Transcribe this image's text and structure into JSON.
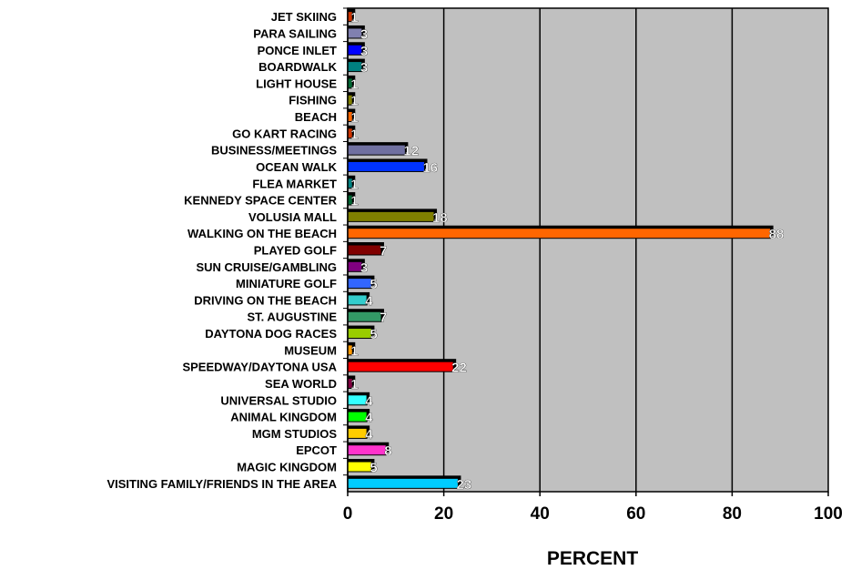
{
  "chart_data": {
    "type": "bar",
    "orientation": "horizontal",
    "xlabel": "PERCENT",
    "xlim": [
      0,
      100
    ],
    "x_ticks": [
      "0",
      "20",
      "40",
      "60",
      "80",
      "100"
    ],
    "grid": "vertical",
    "plot_background": "#c0c0c0",
    "categories": [
      "JET SKIING",
      "PARA SAILING",
      "PONCE INLET",
      "BOARDWALK",
      "LIGHT HOUSE",
      "FISHING",
      "BEACH",
      "GO KART RACING",
      "BUSINESS/MEETINGS",
      "OCEAN WALK",
      "FLEA MARKET",
      "KENNEDY SPACE CENTER",
      "VOLUSIA MALL",
      "WALKING ON THE BEACH",
      "PLAYED GOLF",
      "SUN CRUISE/GAMBLING",
      "MINIATURE GOLF",
      "DRIVING ON THE BEACH",
      "ST. AUGUSTINE",
      "DAYTONA DOG RACES",
      "MUSEUM",
      "SPEEDWAY/DAYTONA USA",
      "SEA WORLD",
      "UNIVERSAL STUDIO",
      "ANIMAL KINGDOM",
      "MGM STUDIOS",
      "EPCOT",
      "MAGIC KINGDOM",
      "VISITING FAMILY/FRIENDS IN THE AREA"
    ],
    "values": [
      1,
      3,
      3,
      3,
      1,
      1,
      1,
      1,
      12,
      16,
      1,
      1,
      18,
      88,
      7,
      3,
      5,
      4,
      7,
      5,
      1,
      22,
      1,
      4,
      4,
      4,
      8,
      5,
      23
    ],
    "colors": [
      "#cc3300",
      "#8080b0",
      "#0000ff",
      "#008080",
      "#006633",
      "#808000",
      "#ff6600",
      "#cc3300",
      "#7070a0",
      "#0033ff",
      "#008080",
      "#006633",
      "#808000",
      "#ff6600",
      "#800000",
      "#800080",
      "#3366ff",
      "#33cccc",
      "#339966",
      "#99cc00",
      "#ff9900",
      "#ff0000",
      "#800040",
      "#33ffff",
      "#00ff00",
      "#ffcc00",
      "#ff33cc",
      "#ffff00",
      "#00ccff"
    ],
    "data_labels": [
      "1",
      "3",
      "3",
      "3",
      "1",
      "1",
      "1",
      "1",
      "12",
      "16",
      "1",
      "1",
      "18",
      "88",
      "7",
      "3",
      "5",
      "4",
      "7",
      "5",
      "1",
      "22",
      "1",
      "4",
      "4",
      "4",
      "8",
      "5",
      "23"
    ]
  }
}
